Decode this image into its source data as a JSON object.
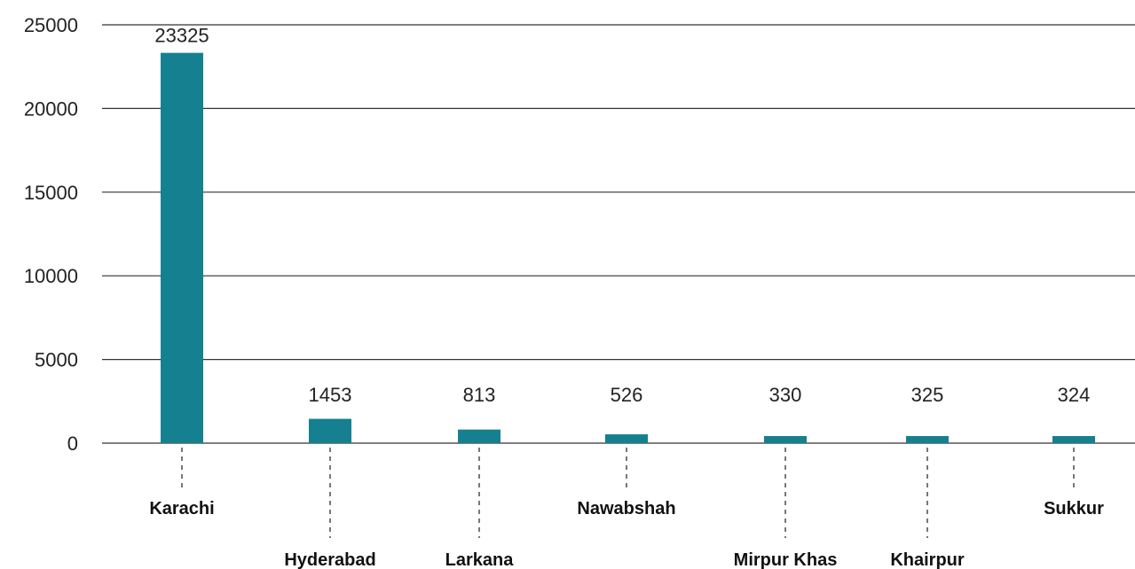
{
  "chart_data": {
    "type": "bar",
    "categories": [
      "Karachi",
      "Hyderabad",
      "Larkana",
      "Nawabshah",
      "Mirpur Khas",
      "Khairpur",
      "Sukkur"
    ],
    "values": [
      23325,
      1453,
      813,
      526,
      330,
      325,
      324
    ],
    "title": "",
    "xlabel": "",
    "ylabel": "",
    "ylim": [
      0,
      25000
    ],
    "yticks": [
      "0",
      "5000",
      "10000",
      "15000",
      "20000",
      "25000"
    ],
    "grid": true,
    "bar_color": "#15808f",
    "gridline_color": "#333333",
    "leader_color": "#777777"
  }
}
